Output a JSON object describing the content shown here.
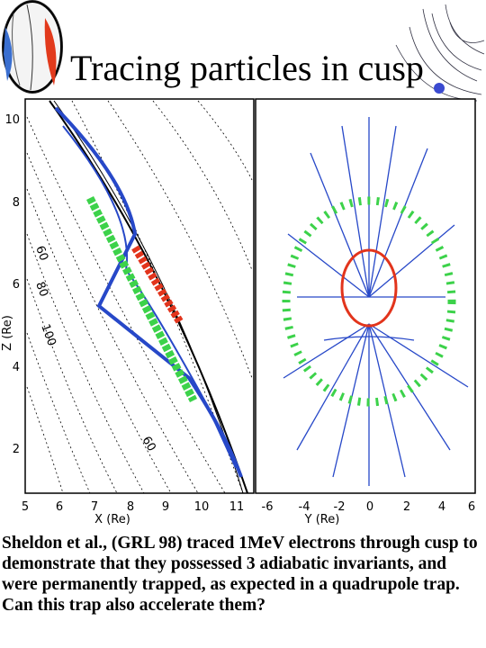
{
  "title": "Tracing particles in cusp",
  "left_panel": {
    "xticks": [
      "5",
      "6",
      "7",
      "8",
      "9",
      "10",
      "11"
    ],
    "xlabel": "X (Re)",
    "yticks": [
      "10",
      "8",
      "6",
      "4",
      "2"
    ],
    "ylabel": "Z (Re)",
    "contour_labels": [
      "60",
      "80",
      "100",
      "60"
    ]
  },
  "right_panel": {
    "xticks": [
      "-6",
      "-4",
      "-2",
      "0",
      "2",
      "4",
      "6"
    ],
    "xlabel": "Y (Re)"
  },
  "caption": "Sheldon et al., (GRL 98) traced 1MeV electrons through cusp to demonstrate that they possessed 3 adiabatic invariants, and were permanently trapped, as expected in a quadrupole trap. Can this trap also accelerate them?"
}
